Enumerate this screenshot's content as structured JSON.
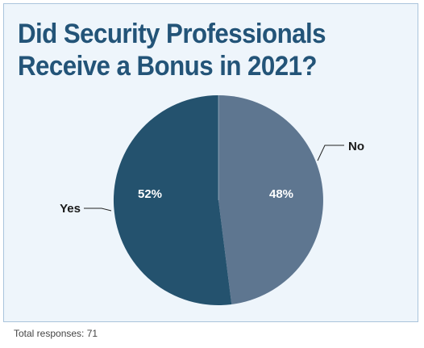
{
  "title_lines": [
    "Did Security Professionals",
    "Receive a Bonus in 2021?"
  ],
  "footnote": "Total responses: 71",
  "chart_data": {
    "type": "pie",
    "title": "Did Security Professionals Receive a Bonus in 2021?",
    "slices": [
      {
        "label": "No",
        "value": 48,
        "value_label": "48%",
        "color": "#5e7690"
      },
      {
        "label": "Yes",
        "value": 52,
        "value_label": "52%",
        "color": "#24526e"
      }
    ],
    "start": "12 o'clock",
    "direction": "clockwise",
    "legend": "callout labels"
  }
}
